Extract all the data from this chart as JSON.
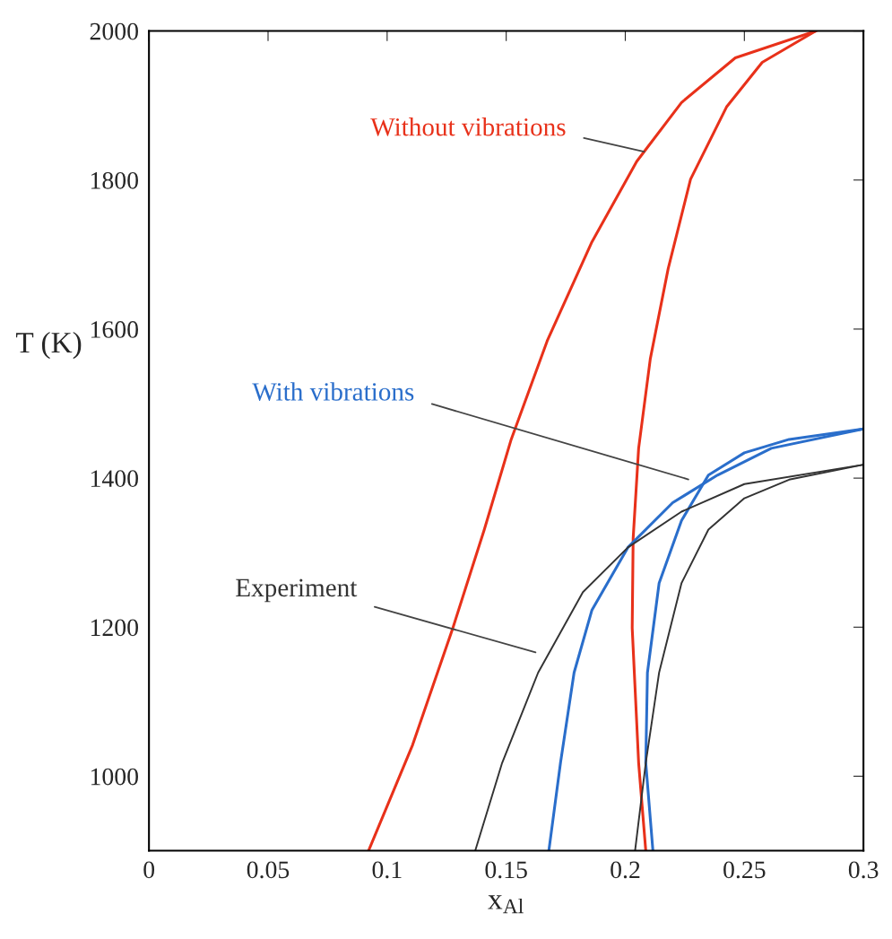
{
  "chart_data": {
    "type": "line",
    "xlabel": "x$_{Al}$",
    "ylabel": "T (K)",
    "xlim": [
      0,
      0.3
    ],
    "ylim": [
      900,
      2000
    ],
    "xticks": [
      0,
      0.05,
      0.1,
      0.15,
      0.2,
      0.25,
      0.3
    ],
    "yticks": [
      1000,
      1200,
      1400,
      1600,
      1800,
      2000
    ],
    "grid": false,
    "marker": "none",
    "line_style": "solid",
    "series": [
      {
        "color": "#e8311a",
        "x": [
          0.0922,
          0.1107,
          0.1276,
          0.1408,
          0.1521,
          0.1672,
          0.186,
          0.2048,
          0.2236,
          0.2462,
          0.28
        ],
        "values": [
          900,
          1042,
          1199,
          1331,
          1452,
          1584,
          1717,
          1825,
          1904,
          1964,
          2000
        ]
      },
      {
        "color": "#e8311a",
        "x": [
          0.2086,
          0.2056,
          0.2029,
          0.2033,
          0.2056,
          0.2105,
          0.218,
          0.2274,
          0.2425,
          0.2575,
          0.28
        ],
        "values": [
          900,
          1018,
          1199,
          1319,
          1440,
          1560,
          1681,
          1801,
          1898,
          1958,
          2000
        ]
      },
      {
        "color": "#2a6ecb",
        "x": [
          0.1679,
          0.1728,
          0.1785,
          0.186,
          0.2011,
          0.2199,
          0.2387,
          0.2613,
          0.3
        ],
        "values": [
          900,
          1018,
          1139,
          1223,
          1307,
          1367,
          1404,
          1440,
          1466
        ]
      },
      {
        "color": "#2a6ecb",
        "x": [
          0.2116,
          0.2086,
          0.2093,
          0.2142,
          0.2236,
          0.2349,
          0.25,
          0.2688,
          0.3
        ],
        "values": [
          900,
          1018,
          1139,
          1259,
          1343,
          1404,
          1434,
          1452,
          1466
        ]
      },
      {
        "color": "#333333",
        "x": [
          0.137,
          0.1483,
          0.1634,
          0.1822,
          0.2011,
          0.2236,
          0.25,
          0.3
        ],
        "values": [
          900,
          1018,
          1139,
          1247,
          1307,
          1355,
          1392,
          1418
        ]
      },
      {
        "color": "#333333",
        "x": [
          0.2041,
          0.2086,
          0.2142,
          0.2236,
          0.2349,
          0.25,
          0.2688,
          0.3
        ],
        "values": [
          900,
          1018,
          1139,
          1259,
          1331,
          1373,
          1398,
          1418
        ]
      }
    ],
    "annotations": [
      {
        "text": "Without vibrations",
        "x": 0.2079,
        "y": 1838
      },
      "With vibrations",
      "Experiment"
    ]
  }
}
